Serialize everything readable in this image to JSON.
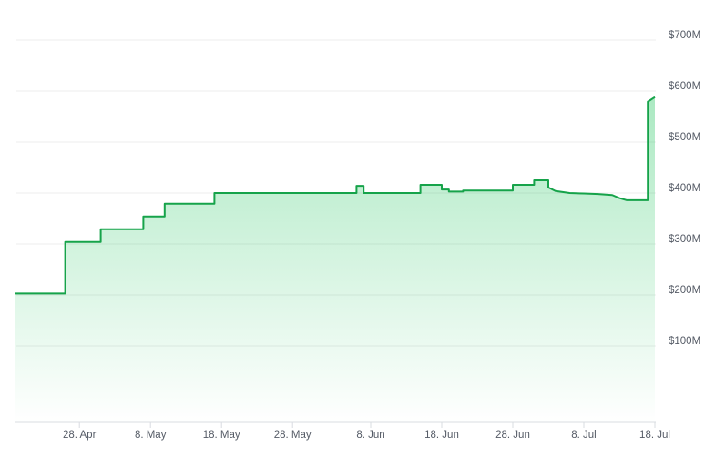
{
  "chart_data": {
    "type": "line",
    "x": [
      "04-19",
      "04-26",
      "04-26",
      "05-01",
      "05-01",
      "05-07",
      "05-07",
      "05-10",
      "05-10",
      "05-17",
      "05-17",
      "06-06",
      "06-06",
      "06-07",
      "06-07",
      "06-15",
      "06-15",
      "06-18",
      "06-18",
      "06-19",
      "06-19",
      "06-21",
      "06-21",
      "06-28",
      "06-28",
      "07-01",
      "07-01",
      "07-03",
      "07-03",
      "07-04",
      "07-05",
      "07-06",
      "07-08",
      "07-10",
      "07-12",
      "07-13",
      "07-14",
      "07-17",
      "07-17",
      "07-18"
    ],
    "values": [
      203,
      203,
      304,
      304,
      329,
      329,
      354,
      354,
      379,
      379,
      400,
      400,
      414,
      414,
      400,
      400,
      416,
      416,
      407,
      407,
      403,
      403,
      405,
      405,
      416,
      416,
      425,
      425,
      411,
      404,
      402,
      400,
      399,
      398,
      396,
      390,
      386,
      386,
      579,
      588
    ],
    "color": "#16a34a",
    "xlim": [
      "04-19",
      "07-18"
    ],
    "xticks": [
      {
        "value": "04-28",
        "label": "28. Apr"
      },
      {
        "value": "05-08",
        "label": "8. May"
      },
      {
        "value": "05-18",
        "label": "18. May"
      },
      {
        "value": "05-28",
        "label": "28. May"
      },
      {
        "value": "06-08",
        "label": "8. Jun"
      },
      {
        "value": "06-18",
        "label": "18. Jun"
      },
      {
        "value": "06-28",
        "label": "28. Jun"
      },
      {
        "value": "07-08",
        "label": "8. Jul"
      },
      {
        "value": "07-18",
        "label": "18. Jul"
      }
    ],
    "ylim": [
      -50,
      750
    ],
    "yticks": [
      {
        "value": 100,
        "label": "$100M"
      },
      {
        "value": 200,
        "label": "$200M"
      },
      {
        "value": 300,
        "label": "$300M"
      },
      {
        "value": 400,
        "label": "$400M"
      },
      {
        "value": 500,
        "label": "$500M"
      },
      {
        "value": 600,
        "label": "$600M"
      },
      {
        "value": 700,
        "label": "$700M"
      }
    ],
    "grid": true
  }
}
